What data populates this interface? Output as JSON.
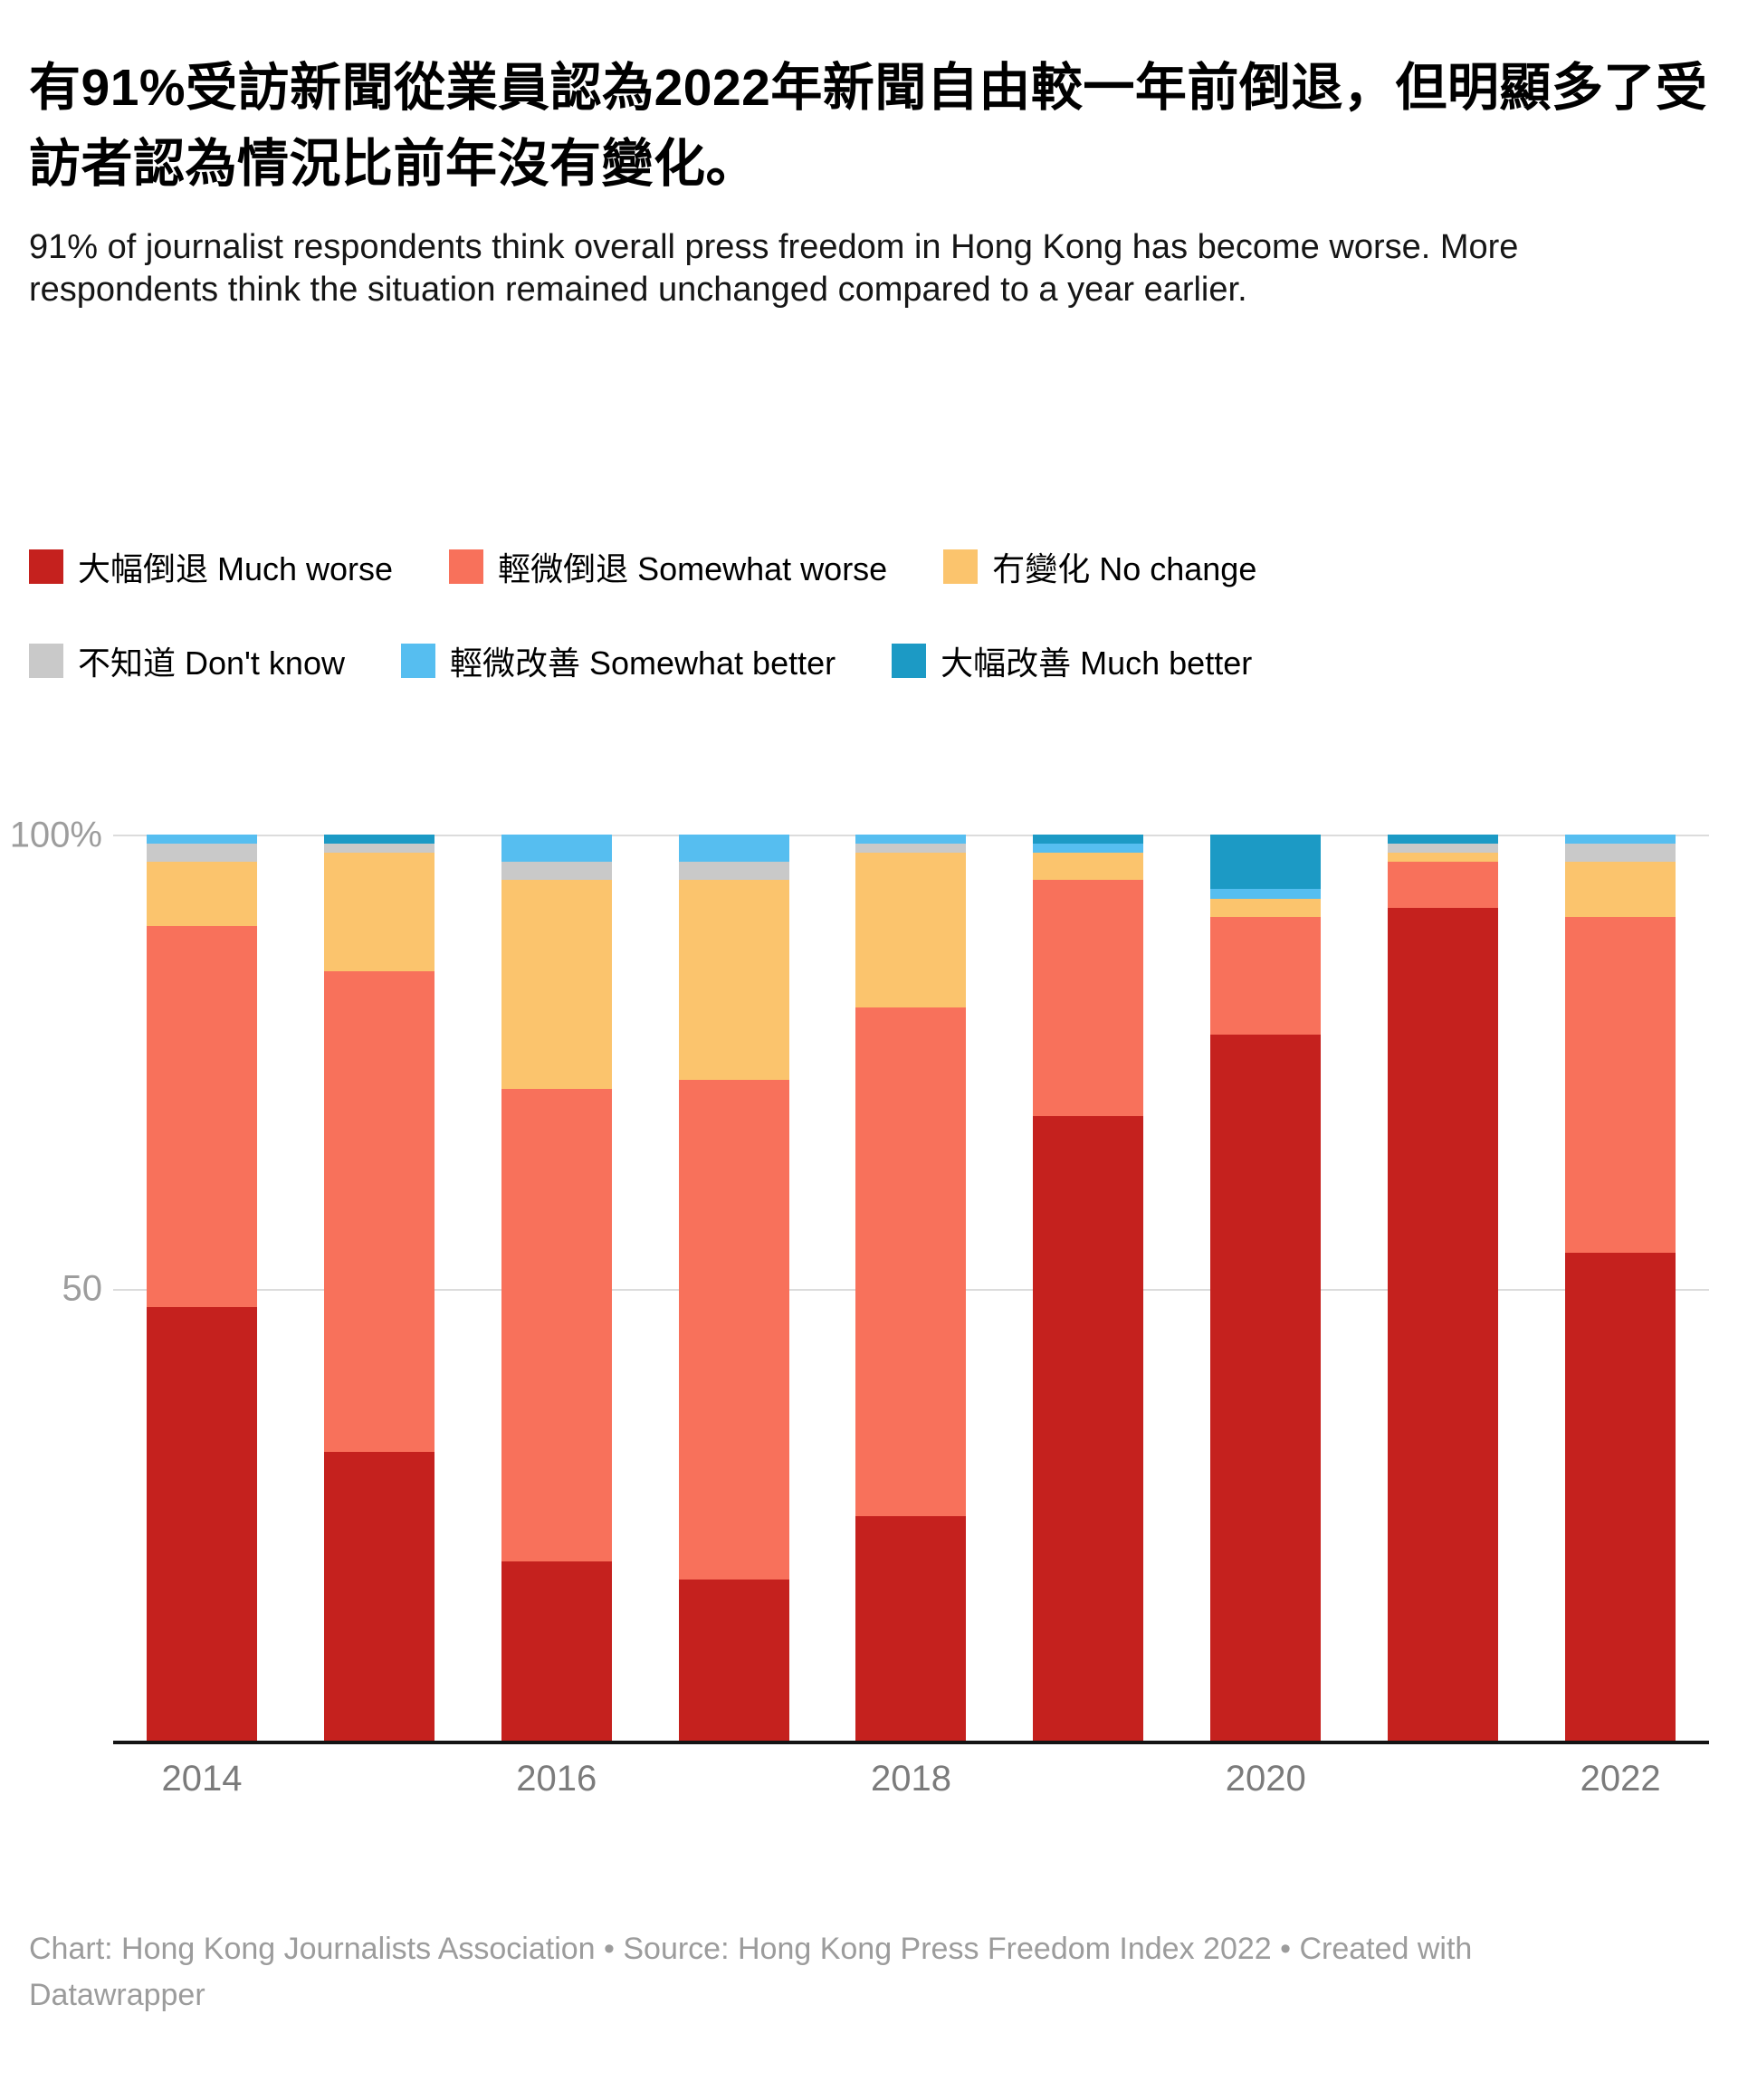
{
  "title": "有91%受訪新聞從業員認為2022年新聞自由較一年前倒退，但明顯多了受訪者認為情況比前年沒有變化。",
  "subtitle": "91% of journalist respondents think overall press freedom in Hong Kong has become worse. More respondents think the situation remained unchanged compared to a year earlier.",
  "footer": "Chart: Hong Kong Journalists Association • Source: Hong Kong Press Freedom Index 2022 • Created with Datawrapper",
  "colors": {
    "much_worse": "#c5211e",
    "somewhat_worse": "#f8715b",
    "no_change": "#fbc46d",
    "dont_know": "#c9c9c9",
    "somewhat_better": "#56bef0",
    "much_better": "#1c9ac5",
    "gridline": "#dcdcdc",
    "axis_line": "#141414",
    "tick_text": "#9d9d9d"
  },
  "chart_data": {
    "type": "bar",
    "stacked": true,
    "unit": "percent",
    "title": "有91%受訪新聞從業員認為2022年新聞自由較一年前倒退，但明顯多了受訪者認為情況比前年沒有變化。",
    "xlabel": "",
    "ylabel": "",
    "ylim": [
      0,
      100
    ],
    "yticks": [
      {
        "value": 100,
        "label": "100%"
      },
      {
        "value": 50,
        "label": "50"
      }
    ],
    "grid": true,
    "legend_position": "top",
    "categories": [
      "2014",
      "2015",
      "2016",
      "2017",
      "2018",
      "2019",
      "2020",
      "2021",
      "2022"
    ],
    "x_tick_labels": [
      "2014",
      "2016",
      "2018",
      "2020",
      "2022"
    ],
    "series": [
      {
        "name": "大幅倒退 Much worse",
        "color": "#c5211e",
        "values": [
          48,
          32,
          20,
          18,
          25,
          69,
          78,
          92,
          54
        ]
      },
      {
        "name": "輕微倒退 Somewhat worse",
        "color": "#f8715b",
        "values": [
          42,
          53,
          52,
          55,
          56,
          26,
          13,
          5,
          37
        ]
      },
      {
        "name": "冇變化 No change",
        "color": "#fbc46d",
        "values": [
          7,
          13,
          23,
          22,
          17,
          3,
          2,
          1,
          6
        ]
      },
      {
        "name": "不知道 Don't know",
        "color": "#c9c9c9",
        "values": [
          2,
          1,
          2,
          2,
          1,
          0,
          0,
          1,
          2
        ]
      },
      {
        "name": "輕微改善 Somewhat better",
        "color": "#56bef0",
        "values": [
          1,
          0,
          3,
          3,
          1,
          1,
          1,
          0,
          1
        ]
      },
      {
        "name": "大幅改善 Much better",
        "color": "#1c9ac5",
        "values": [
          0,
          1,
          0,
          0,
          0,
          1,
          6,
          1,
          0
        ]
      }
    ]
  }
}
